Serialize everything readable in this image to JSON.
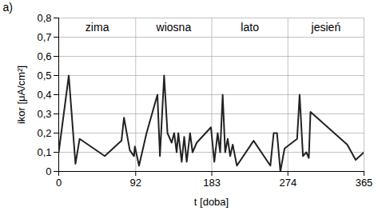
{
  "chart_data": {
    "type": "line",
    "title": "a)",
    "x_label": "t [doba]",
    "y_label": "ikor [μA/cm²]",
    "seasons": [
      "zima",
      "wiosna",
      "lato",
      "jesień"
    ],
    "color": "#222222",
    "grid": true,
    "xlim": [
      0,
      365
    ],
    "xticks": [
      0,
      92,
      183,
      274,
      365
    ],
    "ylim": [
      0,
      0.8
    ],
    "yticks": [
      0,
      {
        "value": 0.1,
        "label": "0,1"
      },
      {
        "value": 0.2,
        "label": "0,2"
      },
      {
        "value": 0.3,
        "label": "0,3"
      },
      {
        "value": 0.4,
        "label": "0,4"
      },
      {
        "value": 0.5,
        "label": "0,5"
      },
      {
        "value": 0.6,
        "label": "0,6"
      },
      {
        "value": 0.7,
        "label": "0,7"
      },
      {
        "value": 0.8,
        "label": "0,8"
      }
    ],
    "x": [
      0,
      12,
      20,
      25,
      55,
      75,
      78,
      85,
      90,
      91,
      96,
      105,
      118,
      121,
      126,
      130,
      135,
      138,
      141,
      143,
      147,
      150,
      153,
      157,
      160,
      165,
      182,
      186,
      190,
      193,
      196,
      199,
      202,
      205,
      208,
      213,
      233,
      253,
      257,
      261,
      265,
      270,
      285,
      288,
      292,
      296,
      299,
      301,
      345,
      355,
      365
    ],
    "values": [
      0.1,
      0.5,
      0.04,
      0.17,
      0.08,
      0.16,
      0.28,
      0.11,
      0.08,
      0.13,
      0.03,
      0.2,
      0.4,
      0.08,
      0.5,
      0.2,
      0.15,
      0.2,
      0.1,
      0.2,
      0.05,
      0.18,
      0.05,
      0.2,
      0.1,
      0.15,
      0.23,
      0.05,
      0.2,
      0.1,
      0.4,
      0.1,
      0.17,
      0.08,
      0.14,
      0.03,
      0.16,
      0.03,
      0.2,
      0.2,
      0.0,
      0.12,
      0.17,
      0.4,
      0.08,
      0.1,
      0.07,
      0.31,
      0.14,
      0.06,
      0.1
    ]
  }
}
